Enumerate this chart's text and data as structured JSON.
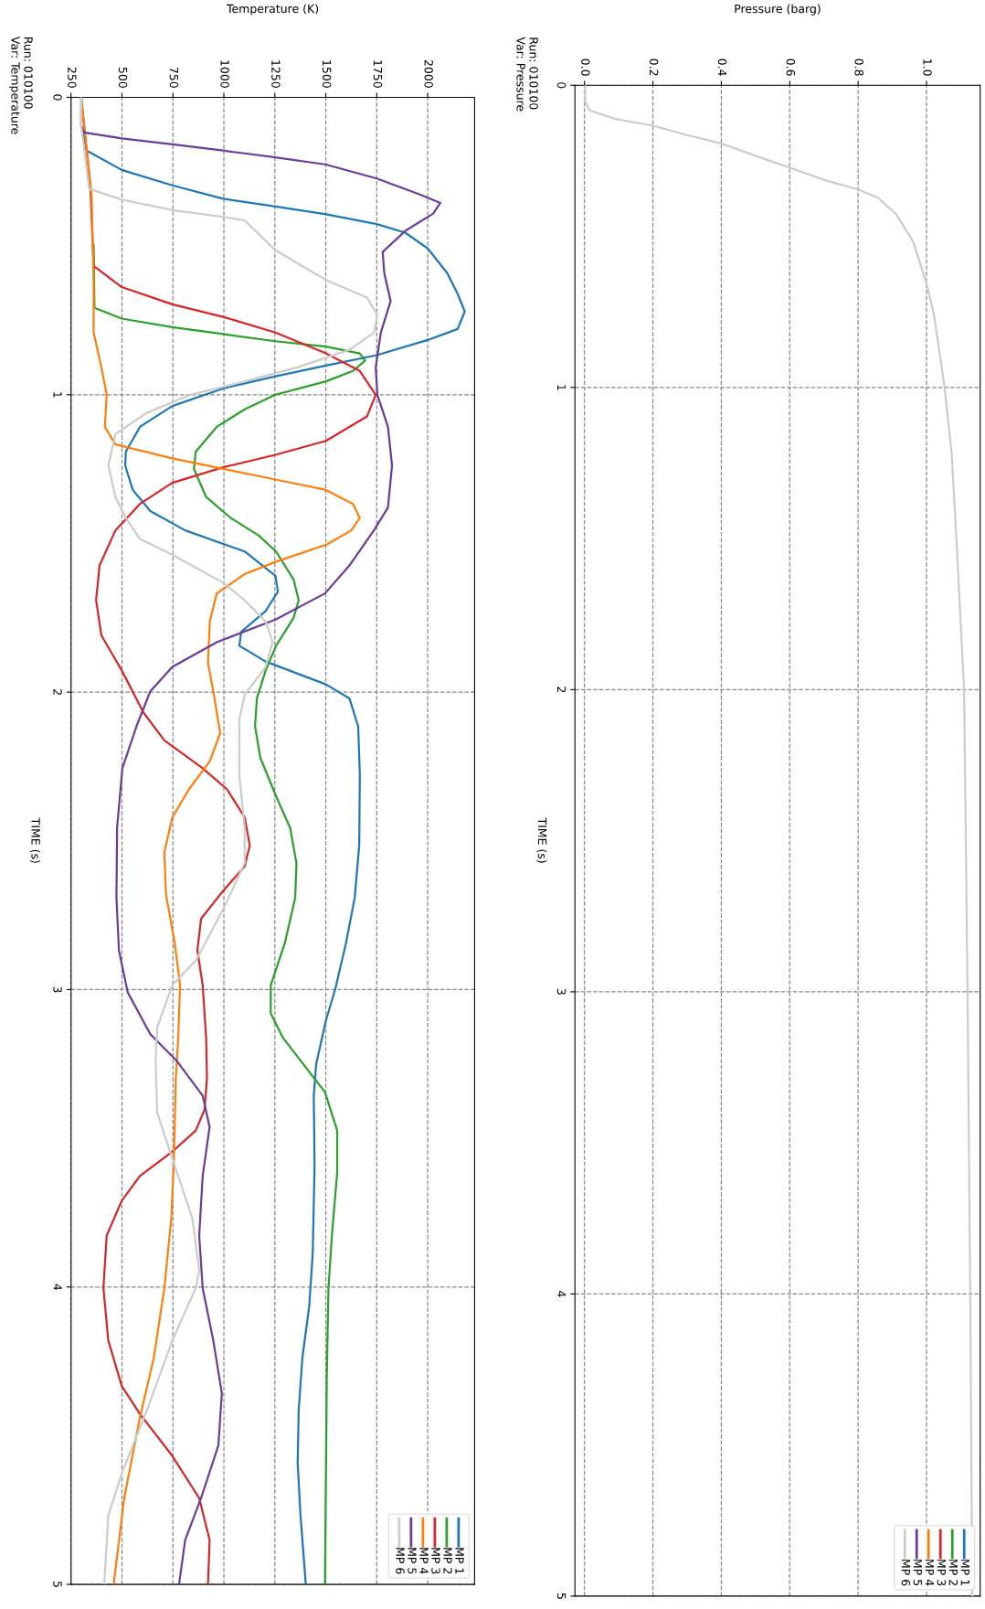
{
  "chart_data": [
    {
      "type": "line",
      "orientation": "horizontal",
      "title": "Run: 010100\nVar: Temperature",
      "xlabel": "Temperature (K)",
      "ylabel": "TIME (s)",
      "xlim": [
        250,
        2230
      ],
      "xticks": [
        250,
        500,
        750,
        1000,
        1250,
        1500,
        1750,
        2000
      ],
      "ylim": [
        5,
        0
      ],
      "yticks": [
        0,
        1,
        2,
        3,
        4,
        5
      ],
      "grid": true,
      "legend": "bottom right",
      "series": [
        {
          "name": "MP 1",
          "color": "#1f77b4",
          "x": [
            0.1,
            0.179,
            0.244,
            0.296,
            0.341,
            0.367,
            0.393,
            0.426,
            0.455,
            0.508,
            0.591,
            0.661,
            0.72,
            0.779,
            0.816,
            0.867,
            0.902,
            0.938,
            0.979,
            1.038,
            1.108,
            1.191,
            1.238,
            1.32,
            1.391,
            1.456,
            1.527,
            1.609,
            1.662,
            1.727,
            1.797,
            1.844,
            1.897,
            1.974,
            2.021,
            2.115,
            2.28,
            2.515,
            2.691,
            2.844,
            2.997,
            3.103,
            3.25,
            3.357,
            3.592,
            3.886,
            4.063,
            4.239,
            4.415,
            4.592,
            4.768,
            5.0
          ],
          "values": [
            305,
            327,
            499,
            747,
            996,
            1253,
            1501,
            1750,
            1890,
            2000,
            2096,
            2147,
            2182,
            2147,
            2000,
            1750,
            1501,
            1253,
            996,
            747,
            588,
            519,
            516,
            553,
            639,
            810,
            1102,
            1253,
            1265,
            1205,
            1085,
            1076,
            1205,
            1501,
            1616,
            1659,
            1667,
            1664,
            1642,
            1599,
            1547,
            1501,
            1453,
            1441,
            1445,
            1436,
            1419,
            1385,
            1367,
            1362,
            1376,
            1402
          ]
        },
        {
          "name": "MP 2",
          "color": "#2ca02c",
          "x": [
            0.496,
            0.708,
            0.744,
            0.773,
            0.796,
            0.82,
            0.838,
            0.861,
            0.885,
            0.92,
            0.955,
            1.0,
            1.049,
            1.108,
            1.191,
            1.249,
            1.344,
            1.414,
            1.473,
            1.527,
            1.621,
            1.691,
            1.75,
            1.844,
            1.927,
            2.021,
            2.115,
            2.221,
            2.35,
            2.456,
            2.574,
            2.691,
            2.844,
            2.985,
            3.08,
            3.162,
            3.239,
            3.345,
            3.474,
            3.615,
            3.827,
            4.004,
            4.298,
            5.0
          ],
          "values": [
            361,
            365,
            499,
            747,
            996,
            1253,
            1501,
            1667,
            1693,
            1633,
            1501,
            1253,
            1102,
            965,
            862,
            853,
            913,
            1033,
            1170,
            1256,
            1342,
            1367,
            1342,
            1256,
            1205,
            1162,
            1153,
            1179,
            1256,
            1325,
            1356,
            1350,
            1299,
            1230,
            1230,
            1290,
            1376,
            1496,
            1556,
            1556,
            1530,
            1513,
            1505,
            1496
          ]
        },
        {
          "name": "MP 3",
          "color": "#d62728",
          "x": [
            0,
            0.3,
            0.567,
            0.638,
            0.696,
            0.738,
            0.791,
            0.861,
            0.92,
            1.0,
            1.073,
            1.155,
            1.202,
            1.244,
            1.296,
            1.367,
            1.456,
            1.574,
            1.691,
            1.809,
            1.927,
            2.068,
            2.162,
            2.256,
            2.327,
            2.421,
            2.515,
            2.585,
            2.68,
            2.762,
            2.868,
            2.985,
            3.162,
            3.298,
            3.404,
            3.474,
            3.545,
            3.627,
            3.71,
            3.827,
            4.004,
            4.18,
            4.333,
            4.427,
            4.568,
            4.71,
            4.851,
            5.0
          ],
          "values": [
            300,
            345,
            361,
            499,
            747,
            996,
            1253,
            1501,
            1667,
            1745,
            1702,
            1501,
            1253,
            996,
            747,
            588,
            468,
            390,
            373,
            399,
            499,
            605,
            708,
            896,
            1016,
            1102,
            1127,
            1102,
            982,
            888,
            870,
            896,
            913,
            917,
            905,
            862,
            747,
            588,
            499,
            425,
            409,
            433,
            499,
            588,
            747,
            879,
            930,
            922
          ]
        },
        {
          "name": "MP 4",
          "color": "#ff7f0e",
          "x": [
            0,
            0.332,
            0.614,
            0.791,
            0.908,
            1.0,
            1.108,
            1.167,
            1.214,
            1.249,
            1.285,
            1.32,
            1.367,
            1.414,
            1.456,
            1.503,
            1.562,
            1.603,
            1.668,
            1.762,
            1.903,
            1.997,
            2.138,
            2.232,
            2.327,
            2.421,
            2.538,
            2.68,
            2.844,
            2.985,
            3.162,
            3.301,
            3.592,
            3.768,
            4.004,
            4.239,
            4.439,
            4.71,
            5.0
          ],
          "values": [
            300,
            351,
            361,
            361,
            399,
            425,
            416,
            468,
            747,
            996,
            1253,
            1501,
            1633,
            1667,
            1625,
            1506,
            1253,
            1102,
            965,
            931,
            922,
            948,
            982,
            931,
            828,
            747,
            708,
            716,
            759,
            785,
            776,
            764,
            754,
            742,
            708,
            656,
            588,
            511,
            459
          ]
        },
        {
          "name": "MP 5",
          "color": "#6a3d9a",
          "x": [
            0,
            0.096,
            0.118,
            0.138,
            0.158,
            0.179,
            0.202,
            0.226,
            0.273,
            0.326,
            0.355,
            0.391,
            0.449,
            0.52,
            0.591,
            0.685,
            0.791,
            0.908,
            1.0,
            1.108,
            1.238,
            1.379,
            1.456,
            1.574,
            1.668,
            1.756,
            1.832,
            1.915,
            1.997,
            2.115,
            2.256,
            2.456,
            2.691,
            2.868,
            3.009,
            3.15,
            3.239,
            3.357,
            3.462,
            3.627,
            3.827,
            4.004,
            4.18,
            4.357,
            4.533,
            4.71,
            4.851,
            5.0
          ],
          "values": [
            300,
            300,
            313,
            499,
            747,
            996,
            1253,
            1501,
            1750,
            1959,
            2062,
            2027,
            1890,
            1779,
            1787,
            1818,
            1770,
            1745,
            1753,
            1805,
            1825,
            1805,
            1736,
            1616,
            1496,
            1253,
            965,
            747,
            639,
            571,
            502,
            476,
            473,
            485,
            528,
            639,
            768,
            896,
            930,
            896,
            879,
            896,
            948,
            990,
            973,
            888,
            810,
            780
          ]
        },
        {
          "name": "MP 6",
          "color": "#cccccc",
          "x": [
            0,
            0.096,
            0.308,
            0.344,
            0.379,
            0.402,
            0.414,
            0.514,
            0.614,
            0.673,
            0.732,
            0.791,
            0.849,
            0.908,
            0.955,
            1.002,
            1.061,
            1.132,
            1.238,
            1.344,
            1.414,
            1.485,
            1.538,
            1.632,
            1.691,
            1.762,
            1.832,
            1.915,
            2.009,
            2.091,
            2.28,
            2.456,
            2.574,
            2.727,
            2.903,
            2.985,
            3.127,
            3.239,
            3.415,
            3.568,
            3.768,
            3.945,
            4.004,
            4.18,
            4.415,
            4.627,
            4.768,
            5.0
          ],
          "values": [
            300,
            300,
            339,
            499,
            747,
            996,
            1102,
            1253,
            1501,
            1702,
            1753,
            1736,
            1616,
            1359,
            1102,
            828,
            622,
            468,
            433,
            468,
            519,
            588,
            747,
            996,
            1102,
            1205,
            1239,
            1205,
            1102,
            1076,
            1076,
            1102,
            1102,
            999,
            862,
            747,
            673,
            665,
            673,
            747,
            845,
            879,
            862,
            747,
            622,
            499,
            433,
            413
          ]
        }
      ]
    },
    {
      "type": "line",
      "orientation": "horizontal",
      "title": "Run: 010100\nVar: Pressure",
      "xlabel": "Pressure (barg)",
      "ylabel": "TIME (s)",
      "xlim": [
        -0.028,
        1.157
      ],
      "xticks": [
        {
          "value": 0,
          "label": "0.0"
        },
        0.2,
        0.4,
        0.6,
        0.8,
        {
          "value": 1,
          "label": "1.0"
        }
      ],
      "ylim": [
        5,
        0
      ],
      "yticks": [
        0,
        1,
        2,
        3,
        4,
        5
      ],
      "grid": true,
      "legend": "bottom right",
      "x": [
        0,
        0.054,
        0.083,
        0.112,
        0.133,
        0.164,
        0.193,
        0.234,
        0.272,
        0.315,
        0.344,
        0.373,
        0.425,
        0.517,
        0.656,
        0.76,
        1.0,
        1.223,
        1.534,
        2.0,
        3.0,
        4.0,
        5.0
      ],
      "series": [
        {
          "name": "MP 1",
          "color": "#1f77b4",
          "values": [
            null,
            null,
            null,
            null,
            null,
            null,
            null,
            null,
            null,
            null,
            null,
            null,
            null,
            null,
            null,
            null,
            null,
            null,
            null,
            null,
            null,
            null,
            null
          ]
        },
        {
          "name": "MP 2",
          "color": "#2ca02c",
          "values": [
            null,
            null,
            null,
            null,
            null,
            null,
            null,
            null,
            null,
            null,
            null,
            null,
            null,
            null,
            null,
            null,
            null,
            null,
            null,
            null,
            null,
            null,
            null
          ]
        },
        {
          "name": "MP 3",
          "color": "#d62728",
          "values": [
            null,
            null,
            null,
            null,
            null,
            null,
            null,
            null,
            null,
            null,
            null,
            null,
            null,
            null,
            null,
            null,
            null,
            null,
            null,
            null,
            null,
            null,
            null
          ]
        },
        {
          "name": "MP 4",
          "color": "#ff7f0e",
          "values": [
            null,
            null,
            null,
            null,
            null,
            null,
            null,
            null,
            null,
            null,
            null,
            null,
            null,
            null,
            null,
            null,
            null,
            null,
            null,
            null,
            null,
            null,
            null
          ]
        },
        {
          "name": "MP 5",
          "color": "#6a3d9a",
          "values": [
            null,
            null,
            null,
            null,
            null,
            null,
            null,
            null,
            null,
            null,
            null,
            null,
            null,
            null,
            null,
            null,
            null,
            null,
            null,
            null,
            null,
            null,
            null
          ]
        },
        {
          "name": "MP 6",
          "color": "#cccccc",
          "values": [
            0.002,
            0.002,
            0.015,
            0.092,
            0.198,
            0.297,
            0.401,
            0.501,
            0.599,
            0.706,
            0.798,
            0.859,
            0.91,
            0.961,
            1.0,
            1.022,
            1.053,
            1.074,
            1.089,
            1.11,
            1.12,
            1.128,
            1.134
          ]
        }
      ]
    }
  ]
}
